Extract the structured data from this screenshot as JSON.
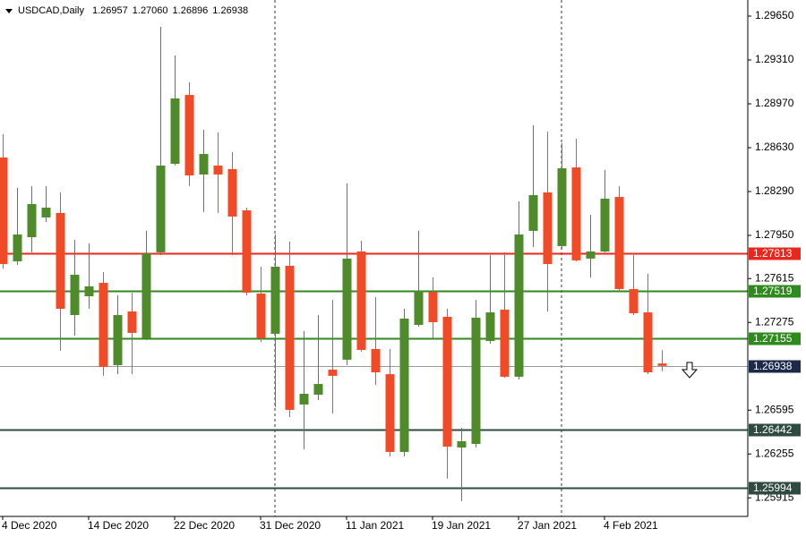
{
  "chart_data": {
    "type": "candlestick",
    "title": "USDCAD,Daily",
    "header_ohlc_labels": [
      "1.26957",
      "1.27060",
      "1.26896",
      "1.26938"
    ],
    "categories": [
      "4 Dec 2020",
      null,
      null,
      null,
      null,
      null,
      "14 Dec 2020",
      null,
      null,
      null,
      null,
      null,
      "22 Dec 2020",
      null,
      null,
      null,
      null,
      null,
      "31 Dec 2020",
      null,
      null,
      null,
      null,
      null,
      "11 Jan 2021",
      null,
      null,
      null,
      null,
      null,
      "19 Jan 2021",
      null,
      null,
      null,
      null,
      null,
      "27 Jan 2021",
      null,
      null,
      null,
      null,
      null,
      "4 Feb 2021",
      null,
      null,
      null,
      null
    ],
    "open": [
      1.28554,
      1.27749,
      1.27936,
      1.28089,
      1.28124,
      1.27332,
      1.27478,
      1.27582,
      1.26944,
      1.2736,
      1.27152,
      1.27818,
      1.28505,
      1.29039,
      1.28422,
      1.28491,
      1.28464,
      1.28144,
      1.27499,
      1.27187,
      1.27714,
      1.26639,
      1.26715,
      1.26909,
      1.26986,
      1.27825,
      1.27069,
      1.26874,
      1.26271,
      1.27256,
      1.27513,
      1.27319,
      1.26305,
      1.26333,
      1.27131,
      1.27374,
      1.26854,
      1.27985,
      1.28283,
      1.27867,
      1.28477,
      1.2777,
      1.27825,
      1.28248,
      1.27534,
      1.27353,
      1.26957
    ],
    "high": [
      1.28734,
      1.28318,
      1.28332,
      1.28332,
      1.28283,
      1.27915,
      1.27888,
      1.27666,
      1.27485,
      1.27506,
      1.27985,
      1.29567,
      1.29345,
      1.29137,
      1.28769,
      1.28748,
      1.28595,
      1.28165,
      1.27707,
      1.27957,
      1.27901,
      1.27208,
      1.27332,
      1.2745,
      1.28353,
      1.27908,
      1.27471,
      1.27069,
      1.27381,
      1.27985,
      1.27624,
      1.27381,
      1.26458,
      1.2745,
      1.27797,
      1.27818,
      1.28214,
      1.28804,
      1.28755,
      1.28665,
      1.28699,
      1.2811,
      1.28457,
      1.28332,
      1.27797,
      1.27652,
      1.2706
    ],
    "low": [
      1.27693,
      1.27721,
      1.27818,
      1.28054,
      1.27055,
      1.27173,
      1.27381,
      1.26861,
      1.26874,
      1.26874,
      1.27138,
      1.27797,
      1.28491,
      1.28332,
      1.2813,
      1.28124,
      1.27797,
      1.27485,
      1.27124,
      1.26618,
      1.26541,
      1.26292,
      1.26673,
      1.26569,
      1.26944,
      1.27048,
      1.26791,
      1.26236,
      1.26236,
      1.27242,
      1.27152,
      1.26063,
      1.25889,
      1.26305,
      1.2711,
      1.26847,
      1.26833,
      1.2786,
      1.2736,
      1.27846,
      1.27749,
      1.27624,
      1.27818,
      1.27513,
      1.27332,
      1.26874,
      1.26896
    ],
    "close": [
      1.27728,
      1.27957,
      1.28193,
      1.28165,
      1.27381,
      1.27645,
      1.27555,
      1.2693,
      1.27332,
      1.27194,
      1.27811,
      1.28491,
      1.29012,
      1.28415,
      1.28581,
      1.28422,
      1.28096,
      1.27506,
      1.27152,
      1.27707,
      1.26597,
      1.26722,
      1.26798,
      1.26861,
      1.2777,
      1.27062,
      1.26888,
      1.26271,
      1.27305,
      1.2752,
      1.27277,
      1.26312,
      1.26354,
      1.27312,
      1.27353,
      1.26854,
      1.27957,
      1.28262,
      1.27728,
      1.2847,
      1.27756,
      1.27825,
      1.28235,
      1.27534,
      1.27346,
      1.26888,
      1.26938
    ],
    "up_color": "#4f8a2b",
    "down_color": "#f04b28",
    "ylim": [
      1.25771,
      1.29775
    ],
    "yticks": [
      {
        "value": 1.2965,
        "label": "1.29650"
      },
      {
        "value": 1.2931,
        "label": "1.29310"
      },
      {
        "value": 1.2897,
        "label": "1.28970"
      },
      {
        "value": 1.2863,
        "label": "1.28630"
      },
      {
        "value": 1.2829,
        "label": "1.28290"
      },
      {
        "value": 1.2795,
        "label": "1.27950"
      },
      1.27615,
      1.27275,
      1.26595,
      1.26255,
      1.25915
    ],
    "levels": [
      {
        "value": 1.27813,
        "color": "#e8281e"
      },
      {
        "value": 1.27519,
        "color": "#2f8a1e"
      },
      {
        "value": 1.27155,
        "color": "#2f8a1e"
      },
      {
        "value": 1.26442,
        "color": "#2f4a40"
      },
      {
        "value": 1.25994,
        "color": "#2f4a40"
      }
    ],
    "current_price_color": "#1b2a4a"
  }
}
